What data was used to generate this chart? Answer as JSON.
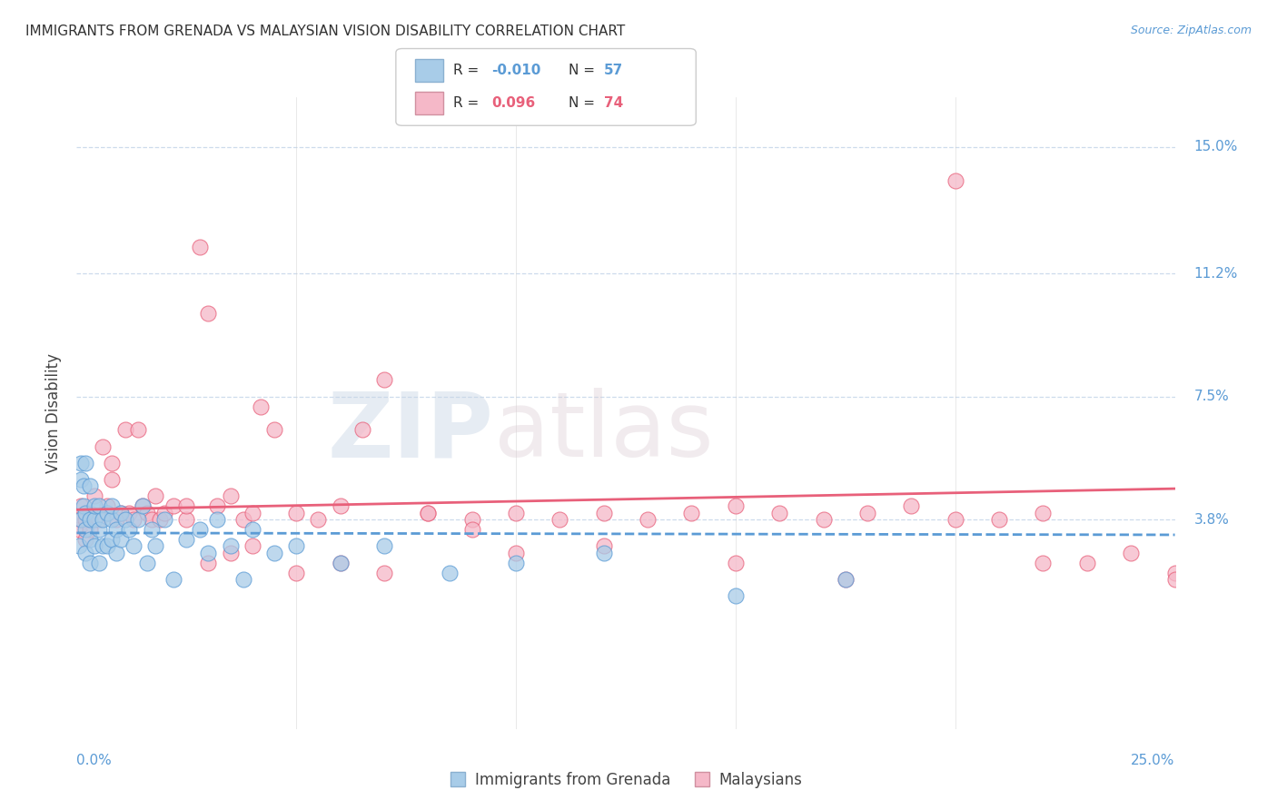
{
  "title": "IMMIGRANTS FROM GRENADA VS MALAYSIAN VISION DISABILITY CORRELATION CHART",
  "source": "Source: ZipAtlas.com",
  "ylabel": "Vision Disability",
  "xlim": [
    0.0,
    0.25
  ],
  "ylim": [
    -0.025,
    0.165
  ],
  "ytick_vals": [
    0.038,
    0.075,
    0.112,
    0.15
  ],
  "ytick_labels": [
    "3.8%",
    "7.5%",
    "11.2%",
    "15.0%"
  ],
  "xgrid_vals": [
    0.05,
    0.1,
    0.15,
    0.2,
    0.25
  ],
  "series1_color": "#a8cce8",
  "series2_color": "#f5b8c8",
  "trendline1_color": "#5b9bd5",
  "trendline2_color": "#e8607a",
  "watermark_zip": "ZIP",
  "watermark_atlas": "atlas",
  "r1": -0.01,
  "n1": 57,
  "r2": 0.096,
  "n2": 74,
  "series1_x": [
    0.0005,
    0.001,
    0.001,
    0.001,
    0.0015,
    0.0015,
    0.002,
    0.002,
    0.002,
    0.002,
    0.003,
    0.003,
    0.003,
    0.003,
    0.004,
    0.004,
    0.004,
    0.005,
    0.005,
    0.005,
    0.006,
    0.006,
    0.007,
    0.007,
    0.008,
    0.008,
    0.008,
    0.009,
    0.009,
    0.01,
    0.01,
    0.011,
    0.012,
    0.013,
    0.014,
    0.015,
    0.016,
    0.017,
    0.018,
    0.02,
    0.022,
    0.025,
    0.028,
    0.03,
    0.032,
    0.035,
    0.038,
    0.04,
    0.045,
    0.05,
    0.06,
    0.07,
    0.085,
    0.1,
    0.12,
    0.15,
    0.175
  ],
  "series1_y": [
    0.03,
    0.055,
    0.05,
    0.038,
    0.048,
    0.042,
    0.028,
    0.035,
    0.04,
    0.055,
    0.025,
    0.032,
    0.038,
    0.048,
    0.03,
    0.038,
    0.042,
    0.025,
    0.035,
    0.042,
    0.03,
    0.038,
    0.03,
    0.04,
    0.032,
    0.038,
    0.042,
    0.028,
    0.035,
    0.032,
    0.04,
    0.038,
    0.035,
    0.03,
    0.038,
    0.042,
    0.025,
    0.035,
    0.03,
    0.038,
    0.02,
    0.032,
    0.035,
    0.028,
    0.038,
    0.03,
    0.02,
    0.035,
    0.028,
    0.03,
    0.025,
    0.03,
    0.022,
    0.025,
    0.028,
    0.015,
    0.02
  ],
  "series2_x": [
    0.0005,
    0.001,
    0.001,
    0.002,
    0.002,
    0.003,
    0.003,
    0.004,
    0.005,
    0.006,
    0.007,
    0.008,
    0.008,
    0.009,
    0.01,
    0.011,
    0.012,
    0.013,
    0.014,
    0.015,
    0.016,
    0.017,
    0.018,
    0.019,
    0.02,
    0.022,
    0.025,
    0.028,
    0.03,
    0.032,
    0.035,
    0.038,
    0.04,
    0.042,
    0.045,
    0.05,
    0.055,
    0.06,
    0.065,
    0.07,
    0.08,
    0.09,
    0.1,
    0.11,
    0.12,
    0.13,
    0.14,
    0.15,
    0.16,
    0.17,
    0.18,
    0.19,
    0.2,
    0.21,
    0.22,
    0.23,
    0.24,
    0.25,
    0.025,
    0.03,
    0.035,
    0.04,
    0.05,
    0.06,
    0.07,
    0.08,
    0.09,
    0.1,
    0.12,
    0.15,
    0.175,
    0.2,
    0.22,
    0.25
  ],
  "series2_y": [
    0.035,
    0.038,
    0.042,
    0.032,
    0.038,
    0.035,
    0.04,
    0.045,
    0.038,
    0.06,
    0.042,
    0.05,
    0.055,
    0.038,
    0.04,
    0.065,
    0.04,
    0.038,
    0.065,
    0.042,
    0.04,
    0.038,
    0.045,
    0.038,
    0.04,
    0.042,
    0.038,
    0.12,
    0.1,
    0.042,
    0.045,
    0.038,
    0.04,
    0.072,
    0.065,
    0.04,
    0.038,
    0.042,
    0.065,
    0.08,
    0.04,
    0.038,
    0.04,
    0.038,
    0.04,
    0.038,
    0.04,
    0.042,
    0.04,
    0.038,
    0.04,
    0.042,
    0.14,
    0.038,
    0.04,
    0.025,
    0.028,
    0.022,
    0.042,
    0.025,
    0.028,
    0.03,
    0.022,
    0.025,
    0.022,
    0.04,
    0.035,
    0.028,
    0.03,
    0.025,
    0.02,
    0.038,
    0.025,
    0.02
  ]
}
